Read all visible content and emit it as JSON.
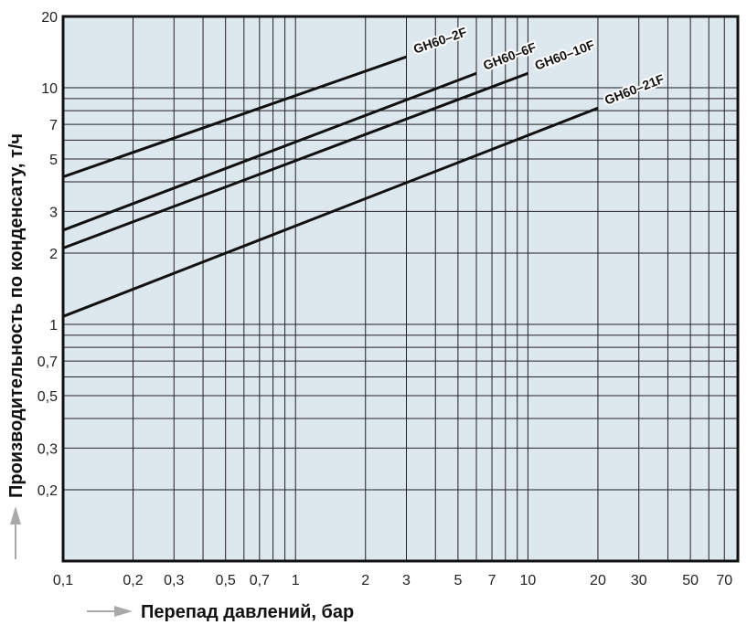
{
  "chart_data": {
    "type": "line",
    "x_scale": "log",
    "y_scale": "log",
    "xlim": [
      0.1,
      80
    ],
    "ylim": [
      0.1,
      20
    ],
    "xlabel": "Перепад давлений, бар",
    "ylabel": "Производительность по конденсату, т/ч",
    "x_ticks": [
      0.1,
      0.2,
      0.3,
      0.5,
      0.7,
      1,
      2,
      3,
      5,
      7,
      10,
      20,
      30,
      50,
      70
    ],
    "x_tick_labels": [
      "0,1",
      "0,2",
      "0,3",
      "0,5",
      "0,7",
      "1",
      "2",
      "3",
      "5",
      "7",
      "10",
      "20",
      "30",
      "50",
      "70"
    ],
    "y_ticks": [
      0.2,
      0.3,
      0.5,
      0.7,
      1,
      2,
      3,
      5,
      7,
      10,
      20
    ],
    "y_tick_labels": [
      "0,2",
      "0,3",
      "0,5",
      "0,7",
      "1",
      "2",
      "3",
      "5",
      "7",
      "10",
      "20"
    ],
    "grid": true,
    "plot_background": "#dde7ee",
    "line_color": "#111111",
    "arrow_color": "#a9a9a9",
    "series": [
      {
        "name": "GH60–2F",
        "x": [
          0.1,
          3
        ],
        "y": [
          4.2,
          13.5
        ]
      },
      {
        "name": "GH60–6F",
        "x": [
          0.1,
          6
        ],
        "y": [
          2.5,
          11.5
        ]
      },
      {
        "name": "GH60–10F",
        "x": [
          0.1,
          10
        ],
        "y": [
          2.1,
          11.5
        ]
      },
      {
        "name": "GH60–21F",
        "x": [
          0.1,
          20
        ],
        "y": [
          1.08,
          8.2
        ]
      }
    ]
  }
}
